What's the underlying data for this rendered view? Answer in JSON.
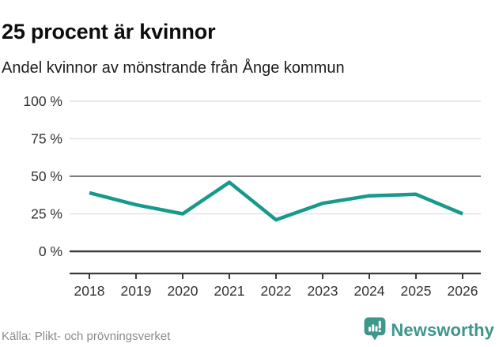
{
  "header": {
    "title": "25 procent är kvinnor",
    "subtitle": "Andel kvinnor av mönstrande från Ånge kommun"
  },
  "chart_data": {
    "type": "line",
    "title": "25 procent är kvinnor",
    "subtitle": "Andel kvinnor av mönstrande från Ånge kommun",
    "x": [
      "2018",
      "2019",
      "2020",
      "2021",
      "2022",
      "2023",
      "2024",
      "2025",
      "2026"
    ],
    "series": [
      {
        "name": "Andel kvinnor av mönstrande (%)",
        "values": [
          39,
          31,
          25,
          46,
          21,
          32,
          37,
          38,
          25
        ]
      }
    ],
    "xlabel": "",
    "ylabel": "",
    "ylim": [
      0,
      100
    ],
    "yticks": [
      0,
      25,
      50,
      75,
      100
    ],
    "ytick_labels": [
      "0 %",
      "25 %",
      "50 %",
      "75 %",
      "100 %"
    ],
    "grid": true,
    "legend": "none",
    "emphasized_gridlines": [
      0,
      50
    ]
  },
  "footer": {
    "source": "Källa: Plikt- och prövningsverket",
    "brand": "Newsworthy"
  },
  "colors": {
    "line": "#17998c",
    "brand_teal": "#3f968a",
    "grid_light": "#e3e3e3",
    "grid_mid": "#7d7d7d",
    "axis_dark": "#3c3c3c",
    "tick_label": "#333333",
    "title_text": "#0d0d0d",
    "source_text": "#8a8a8a"
  }
}
